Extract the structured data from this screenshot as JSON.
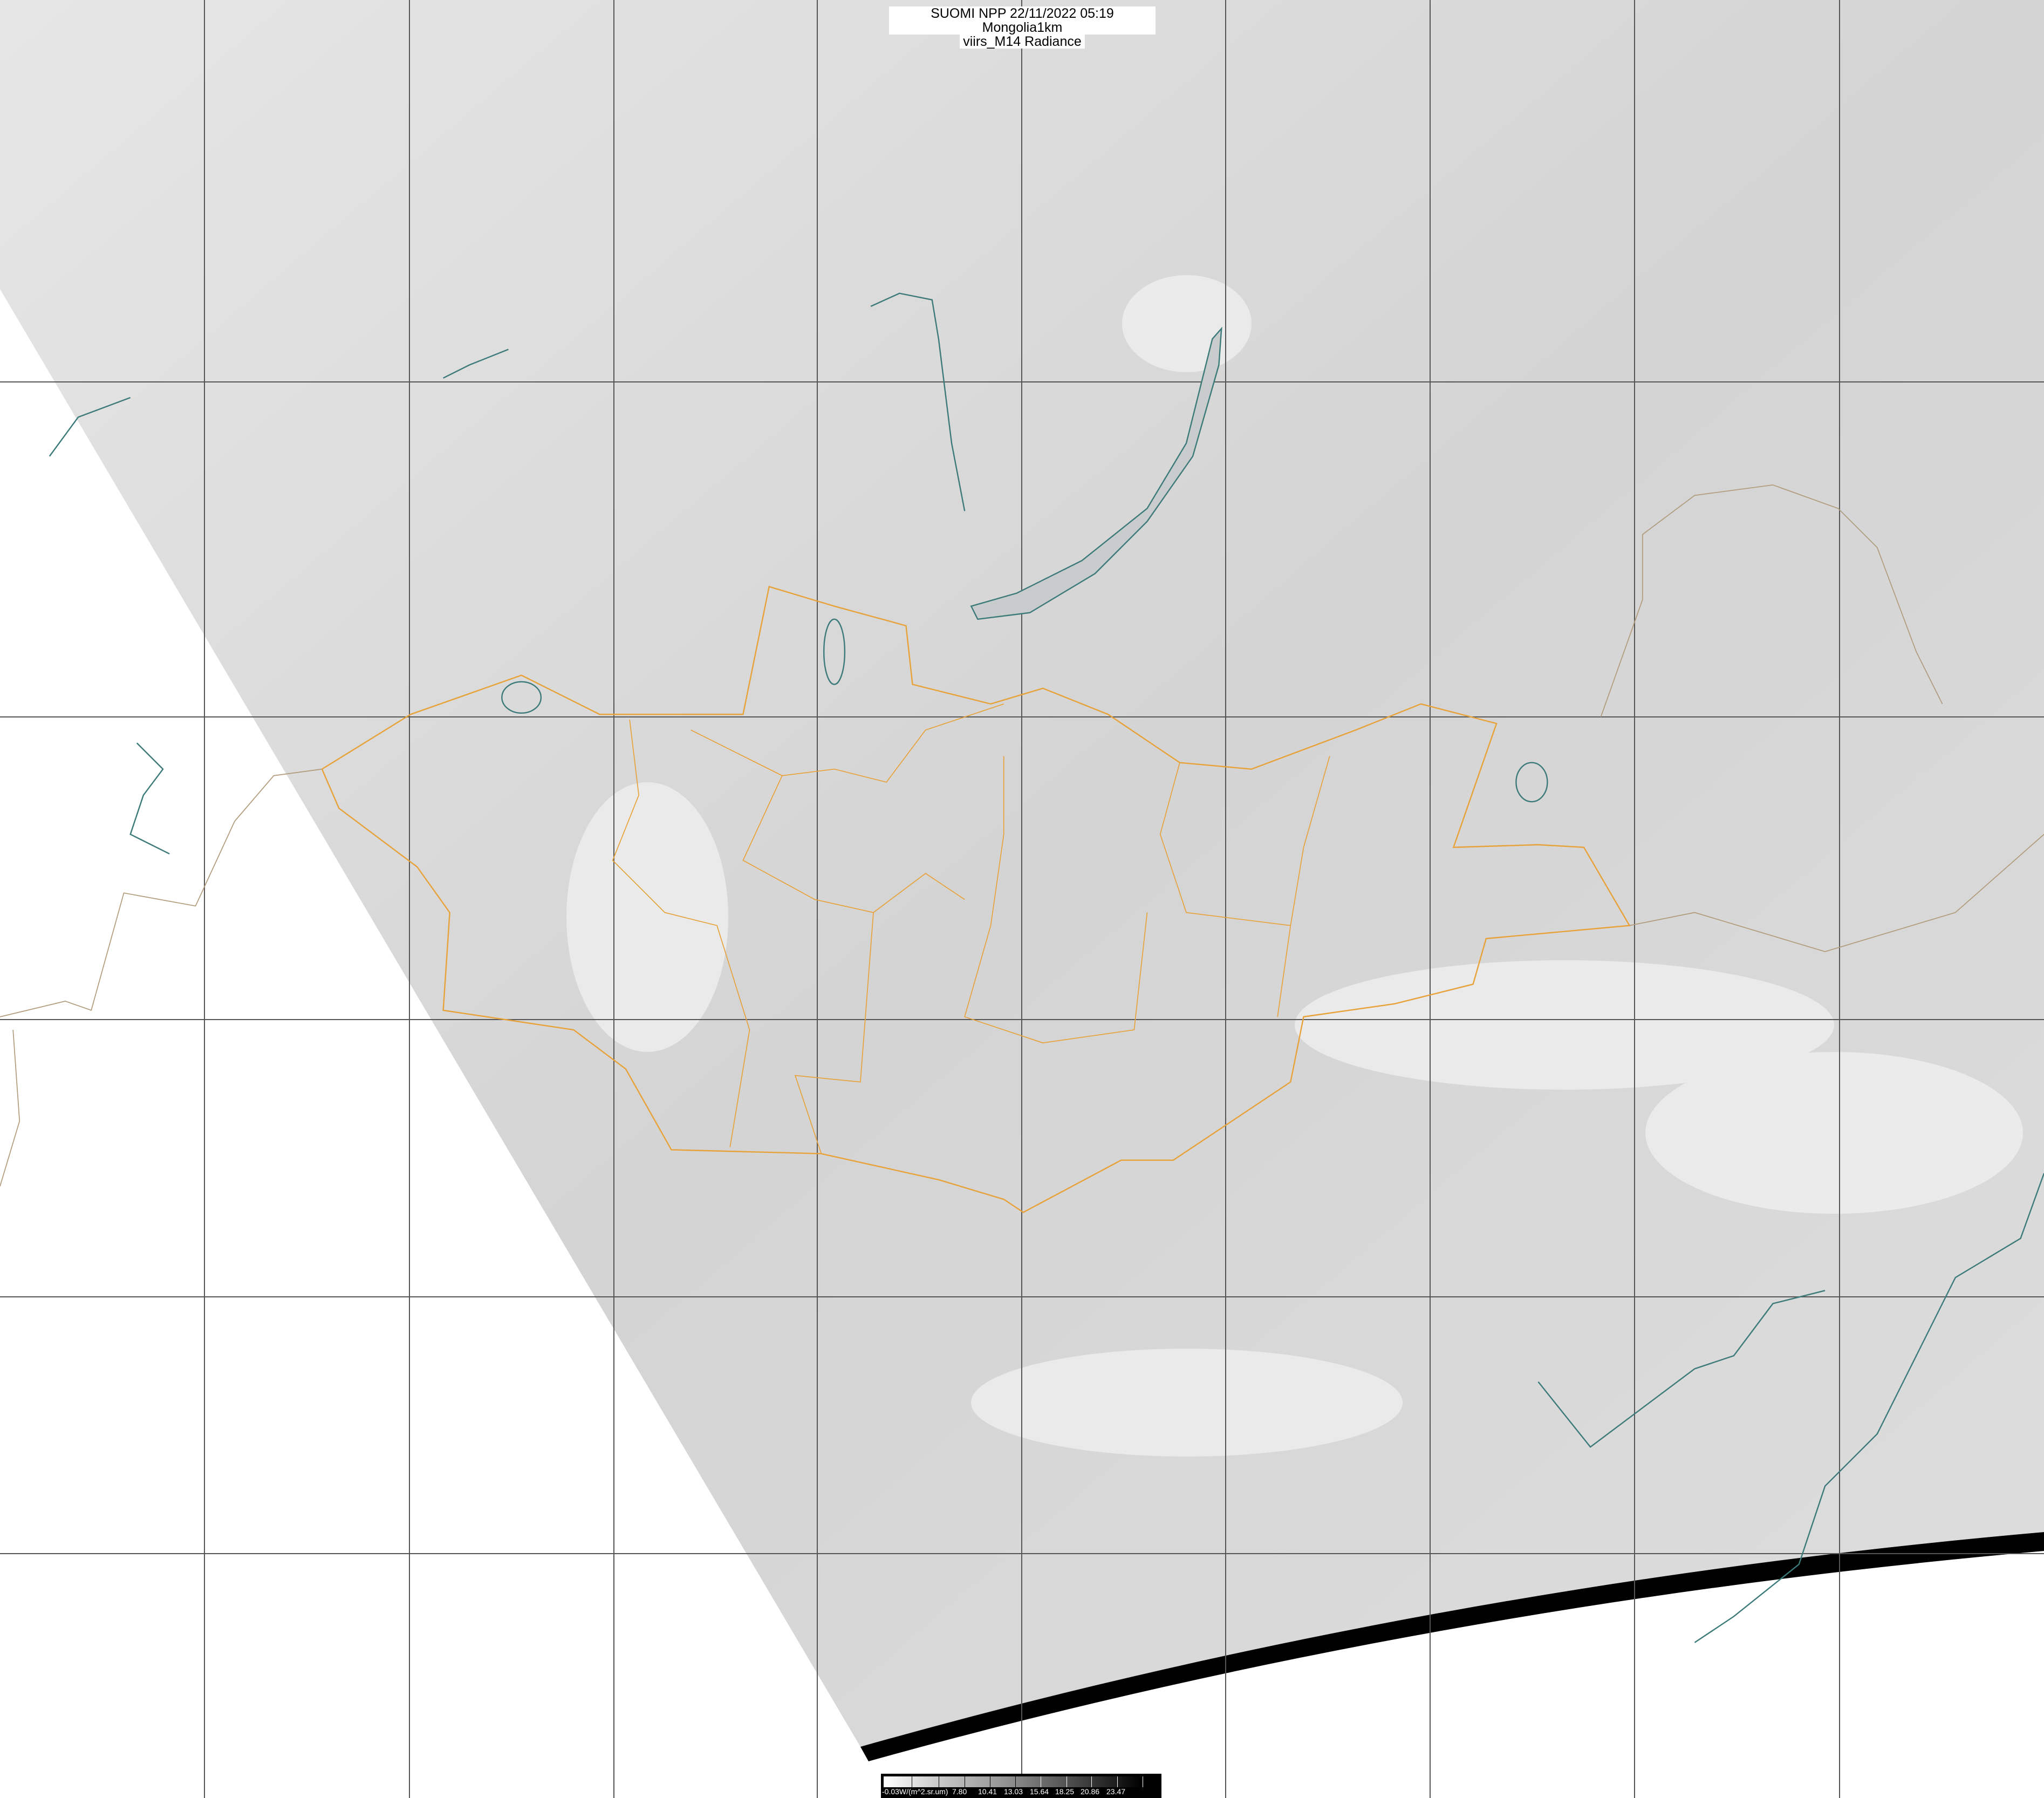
{
  "title": {
    "line1": "SUOMI NPP 22/11/2022 05:19 Mongolia1km",
    "line2": "viirs_M14 Radiance"
  },
  "colorbar": {
    "labels": [
      "-0.03W/(m^2.sr.um)",
      "7.80",
      "10.41",
      "13.03",
      "15.64",
      "18.25",
      "20.86",
      "23.47"
    ],
    "colors": {
      "low": "#ffffff",
      "high": "#000000"
    }
  },
  "map": {
    "colors": {
      "swath": "#d9d9d9",
      "grid": "#555555",
      "province_borders": "#e8a23a",
      "coastlines_lakes": "#3d7a7a",
      "country_borders": "#b09a7a",
      "background": "#ffffff"
    }
  }
}
